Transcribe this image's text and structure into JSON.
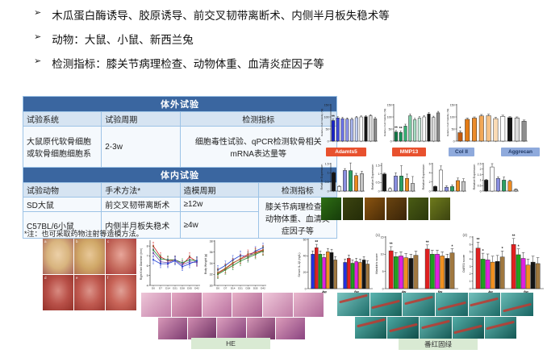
{
  "bullet_marker": "➢",
  "bullets": [
    {
      "text": "木瓜蛋白酶诱导、胶原诱导、前交叉韧带离断术、内侧半月板失稳术等"
    },
    {
      "text": "动物：大鼠、小鼠、新西兰兔"
    },
    {
      "text": "检测指标：膝关节病理检查、动物体重、血清炎症因子等"
    }
  ],
  "table": {
    "invitro": {
      "band": "体外试验",
      "headers": [
        "试验系统",
        "试验周期",
        "检测指标"
      ],
      "row": [
        "大鼠原代软骨细胞\n或软骨细胞细胞系",
        "2-3w",
        "细胞毒性试验、qPCR检测软骨相关\nmRNA表达量等"
      ]
    },
    "invivo": {
      "band": "体内试验",
      "headers": [
        "试验动物",
        "手术方法*",
        "造模周期",
        "检测指标"
      ],
      "rows": [
        [
          "SD大鼠",
          "前交叉韧带离断术",
          "≥12w"
        ],
        [
          "C57BL/6小鼠",
          "内侧半月板失稳术",
          "≥4w"
        ]
      ],
      "merged_cell": "膝关节病理检查、\n动物体重、血清炎\n症因子等"
    },
    "footnote": "*注：也可采取药物注射等造模方法。"
  },
  "gene_labels": [
    {
      "text": "Adamts5",
      "bg": "#E8512E",
      "fg": "#FFFFFF"
    },
    {
      "text": "MMP13",
      "bg": "#E8512E",
      "fg": "#FFFFFF"
    },
    {
      "text": "Col II",
      "bg": "#8FAADC",
      "fg": "#1F3864"
    },
    {
      "text": "Aggrecan",
      "bg": "#8FAADC",
      "fg": "#1F3864"
    }
  ],
  "stain_labels": {
    "he": "HE",
    "safranin": "番红固绿"
  },
  "chart_data": [
    {
      "id": "viab1",
      "type": "bar",
      "ylabel": "Relative Cell Viability (%)",
      "yfs": 3.1,
      "ylim": [
        0,
        150
      ],
      "yticks": [
        0,
        50,
        100,
        150
      ],
      "colors": [
        "#1822CE",
        "#3E49DC",
        "#6A71E4",
        "#8C93EC",
        "#A9B6F0",
        "#C6D3F6",
        "#FFFFFF",
        "#141414",
        "#DCDCDC",
        "#8E8E8E"
      ],
      "values": [
        85,
        96,
        93,
        91,
        90,
        97,
        100,
        101,
        105,
        92
      ],
      "errs": [
        6,
        5,
        5,
        5,
        5,
        5,
        4,
        5,
        4,
        6
      ],
      "sig": [
        {
          "i": 0,
          "t": "**"
        }
      ]
    },
    {
      "id": "viab2",
      "type": "bar",
      "ylabel": "Relative Cell Viability (%)",
      "yfs": 3.1,
      "ylim": [
        0,
        150
      ],
      "yticks": [
        0,
        50,
        100,
        150
      ],
      "colors": [
        "#0F7A46",
        "#18945A",
        "#35AE72",
        "#7ECDA6",
        "#A8DEC4",
        "#CDEFDF",
        "#FFFFFF",
        "#141414",
        "#DCDCDC",
        "#8E8E8E"
      ],
      "values": [
        38,
        36,
        62,
        105,
        88,
        95,
        100,
        112,
        98,
        117
      ],
      "errs": [
        6,
        6,
        8,
        7,
        6,
        6,
        5,
        6,
        5,
        6
      ],
      "sig": [
        {
          "i": 0,
          "t": "**"
        },
        {
          "i": 1,
          "t": "**"
        }
      ]
    },
    {
      "id": "viab3",
      "type": "bar",
      "ylabel": "Relative Cell Viability (%)",
      "yfs": 3.1,
      "ylim": [
        0,
        150
      ],
      "yticks": [
        0,
        50,
        100,
        150
      ],
      "colors": [
        "#C05A10",
        "#E47B14",
        "#EC8C2C",
        "#F2A858",
        "#F6C288",
        "#FBDCB6",
        "#FFFFFF",
        "#141414",
        "#DCDCDC",
        "#8E8E8E"
      ],
      "values": [
        35,
        90,
        95,
        104,
        105,
        93,
        102,
        97,
        96,
        82
      ],
      "errs": [
        7,
        5,
        5,
        6,
        6,
        5,
        5,
        4,
        4,
        5
      ],
      "sig": [
        {
          "i": 0,
          "t": "*"
        }
      ]
    },
    {
      "id": "expr1",
      "type": "bar",
      "ylabel": "Relative Expression",
      "yfs": 3.6,
      "ylim": [
        0,
        1.5
      ],
      "yticks": [
        0,
        0.5,
        1.0,
        1.5
      ],
      "colors": [
        "#141414",
        "#FFFFFF",
        "#8A8FE0",
        "#2BA065",
        "#EC8A20",
        "#C6C6C6"
      ],
      "values": [
        1.0,
        0.25,
        1.13,
        1.12,
        0.85,
        0.95
      ],
      "errs": [
        0.05,
        0.05,
        0.1,
        0.42,
        0.12,
        0.13
      ]
    },
    {
      "id": "expr2",
      "type": "bar",
      "ylabel": "Relative Expression",
      "yfs": 3.6,
      "ylim": [
        0,
        1.6
      ],
      "yticks": [
        0,
        0.5,
        1.0,
        1.5
      ],
      "colors": [
        "#141414",
        "#FFFFFF",
        "#8A8FE0",
        "#2BA065",
        "#EC8A20",
        "#C6C6C6"
      ],
      "values": [
        1.0,
        0.14,
        0.88,
        0.88,
        0.74,
        0.45
      ],
      "errs": [
        0.05,
        0.05,
        0.18,
        0.6,
        0.25,
        0.4
      ]
    },
    {
      "id": "expr3",
      "type": "bar",
      "ylabel": "Relative Expression",
      "yfs": 3.6,
      "ylim": [
        0,
        6
      ],
      "yticks": [
        0,
        2,
        4,
        6
      ],
      "colors": [
        "#141414",
        "#FFFFFF",
        "#8A8FE0",
        "#2BA065",
        "#EC8A20",
        "#C6C6C6"
      ],
      "values": [
        1.0,
        4.6,
        0.85,
        1.0,
        2.3,
        2.1
      ],
      "errs": [
        0.1,
        0.9,
        0.3,
        0.35,
        0.55,
        0.6
      ]
    },
    {
      "id": "expr4",
      "type": "bar",
      "ylabel": "Relative Expression",
      "yfs": 3.6,
      "ylim": [
        0,
        2.5
      ],
      "yticks": [
        0,
        0.5,
        1.0,
        1.5,
        2.0,
        2.5
      ],
      "colors": [
        "#141414",
        "#FFFFFF",
        "#8A8FE0",
        "#2BA065",
        "#EC8A20",
        "#C6C6C6"
      ],
      "values": [
        1.0,
        2.2,
        1.15,
        1.0,
        0.9,
        0.15
      ],
      "errs": [
        0.06,
        0.3,
        0.15,
        0.28,
        0.1,
        0.05
      ]
    },
    {
      "id": "knee",
      "type": "line",
      "ylabel": "Right Knee Diameter (mm)",
      "yfs": 3.3,
      "ylim": [
        4,
        8.5
      ],
      "yticks": [
        4,
        5,
        6,
        7,
        8
      ],
      "err": 0.4,
      "x": [
        "D0",
        "D7",
        "D14",
        "D21",
        "D28",
        "D35",
        "D42"
      ],
      "series": [
        {
          "color": "#D42020",
          "values": [
            8.0,
            6.9,
            6.5,
            6.6,
            6.1,
            6.9,
            6.4
          ]
        },
        {
          "color": "#1E8A2E",
          "values": [
            7.6,
            6.7,
            6.6,
            6.6,
            6.3,
            6.6,
            6.5
          ]
        },
        {
          "color": "#7A4FB0",
          "values": [
            7.3,
            6.4,
            6.3,
            6.6,
            6.1,
            6.4,
            6.3
          ]
        },
        {
          "color": "#2040D4",
          "values": [
            6.6,
            6.2,
            6.2,
            6.5,
            5.9,
            6.2,
            6.5
          ]
        }
      ]
    },
    {
      "id": "weight",
      "type": "line",
      "ylabel": "Body Weight (g)",
      "yfs": 3.5,
      "ylim": [
        30,
        38
      ],
      "yticks": [
        30,
        32,
        34,
        36,
        38
      ],
      "err": 0.8,
      "x": [
        "D0",
        "D7",
        "D14",
        "D21",
        "D28",
        "D35",
        "D42"
      ],
      "series": [
        {
          "color": "#2040D4",
          "values": [
            32.8,
            33.6,
            34.6,
            35.4,
            35.2,
            36.2,
            36.8
          ]
        },
        {
          "color": "#D42020",
          "values": [
            32.2,
            33.0,
            34.0,
            34.8,
            35.6,
            36.0,
            36.4
          ]
        },
        {
          "color": "#1E8A2E",
          "values": [
            32.0,
            32.8,
            33.6,
            34.4,
            35.0,
            35.6,
            36.2
          ]
        },
        {
          "color": "#9A6A30",
          "values": [
            32.3,
            33.1,
            34.1,
            34.7,
            35.3,
            35.8,
            36.3
          ]
        }
      ]
    },
    {
      "id": "il1b",
      "type": "bar",
      "ylabel": "Serum IL-1β (ng/L)",
      "yfs": 3.6,
      "ylim": [
        0,
        60
      ],
      "yticks": [
        0,
        20,
        40,
        60
      ],
      "err": 4,
      "groups": [
        "4w",
        "6w"
      ],
      "colors": [
        "#2230E0",
        "#E02020",
        "#20A020",
        "#E020E0",
        "#F09020",
        "#141414",
        "#A07840"
      ],
      "values": [
        [
          42,
          50,
          42,
          38,
          45,
          44,
          35
        ],
        [
          32,
          37,
          31,
          33,
          32,
          35,
          30
        ]
      ],
      "sig": [
        {
          "g": 0,
          "i": 1,
          "t": "**"
        }
      ]
    },
    {
      "id": "mankins",
      "type": "bar",
      "ylabel": "Mankin's score",
      "yfs": 3.8,
      "corner": "(1)",
      "ylim": [
        0,
        15
      ],
      "yticks": [
        0,
        5,
        10,
        15
      ],
      "err": 1.2,
      "groups": [
        "4w",
        "6w"
      ],
      "colors": [
        "#E02020",
        "#20A020",
        "#E020E0",
        "#F09020",
        "#141414",
        "#A07840"
      ],
      "values": [
        [
          11,
          9.3,
          9.5,
          9.0,
          8.8,
          9.7
        ],
        [
          11.5,
          10,
          10,
          9.5,
          8.8,
          10.4
        ]
      ],
      "sig": [
        {
          "g": 0,
          "i": 0,
          "t": "**"
        },
        {
          "g": 1,
          "i": 0,
          "t": "**"
        },
        {
          "g": 1,
          "i": 5,
          "t": "*"
        }
      ]
    },
    {
      "id": "oarsi",
      "type": "bar",
      "ylabel": "OARSI score",
      "yfs": 3.8,
      "corner": "(2)",
      "ylim": [
        0,
        7
      ],
      "yticks": [
        0,
        1,
        2,
        3,
        4,
        5,
        6,
        7
      ],
      "err": 0.8,
      "groups": [
        "4w",
        "6w"
      ],
      "colors": [
        "#E02020",
        "#20A020",
        "#E020E0",
        "#F09020",
        "#141414",
        "#A07840"
      ],
      "values": [
        [
          5.5,
          4.0,
          3.9,
          3.6,
          3.7,
          4.3
        ],
        [
          6.0,
          4.6,
          4.1,
          3.2,
          3.6,
          3.4
        ]
      ],
      "sig": [
        {
          "g": 0,
          "i": 0,
          "t": "**"
        },
        {
          "g": 0,
          "i": 1,
          "t": "*"
        },
        {
          "g": 0,
          "i": 5,
          "t": "*"
        },
        {
          "g": 1,
          "i": 0,
          "t": "**"
        },
        {
          "g": 1,
          "i": 1,
          "t": "*"
        }
      ]
    }
  ],
  "images": {
    "surgery": {
      "panels": [
        {
          "label": "a",
          "hi": "#ecd0a8",
          "mid": "#d8b47e",
          "dark": "#a8625a"
        },
        {
          "label": "b",
          "hi": "#e8c898",
          "mid": "#d0a868",
          "dark": "#b07050"
        },
        {
          "label": "c",
          "hi": "#e8a69a",
          "mid": "#c87062",
          "dark": "#a83a38"
        },
        {
          "label": "d",
          "hi": "#d88a80",
          "mid": "#b85048",
          "dark": "#933028"
        },
        {
          "label": "e",
          "hi": "#dc948a",
          "mid": "#c05a50",
          "dark": "#9a3630"
        },
        {
          "label": "f",
          "hi": "#e0a096",
          "mid": "#c86458",
          "dark": "#a04038"
        }
      ]
    },
    "fluorescence": {
      "tiles": [
        [
          "#2e6e14",
          "#163c0a"
        ],
        [
          "#3c4410",
          "#242c08"
        ],
        [
          "#8a5410",
          "#4a2c08"
        ],
        [
          "#6a4410",
          "#3a2408"
        ],
        [
          "#4a5c14",
          "#2c380c"
        ],
        [
          "#6e7a1c",
          "#3c4410"
        ]
      ]
    },
    "he": {
      "top": [
        [
          "#eec6d8",
          "#c27fa8"
        ],
        [
          "#e4aac4",
          "#a85a88"
        ],
        [
          "#eebdd2",
          "#b86f9e"
        ],
        [
          "#e8b2c8",
          "#aa6090"
        ],
        [
          "#f0c8da",
          "#c07da6"
        ],
        [
          "#eab8ce",
          "#b06898"
        ]
      ],
      "bottom": [
        [
          "#d898b8",
          "#7c3a70"
        ],
        [
          "#d08cb0",
          "#6e3264"
        ],
        [
          "#dca0be",
          "#84407a"
        ],
        [
          "#d494b4",
          "#763668"
        ],
        [
          "#dc9cba",
          "#8a4480"
        ]
      ]
    },
    "safranin": {
      "accent": "#C03A30",
      "top": [
        [
          "#7ac4c0",
          "#1e6e6a"
        ],
        [
          "#5ab4b0",
          "#166058"
        ],
        [
          "#6cbcb8",
          "#1a6864"
        ],
        [
          "#62b8b2",
          "#186260"
        ],
        [
          "#74c0bc",
          "#1c6a66"
        ],
        [
          "#68bab4",
          "#186462"
        ]
      ],
      "bottom": [
        [
          "#56b0aa",
          "#145852"
        ],
        [
          "#4aa8a2",
          "#104e4a"
        ],
        [
          "#60b4ae",
          "#165a56"
        ],
        [
          "#52aca6",
          "#125450"
        ],
        [
          "#5cb2ac",
          "#145854"
        ]
      ]
    }
  }
}
